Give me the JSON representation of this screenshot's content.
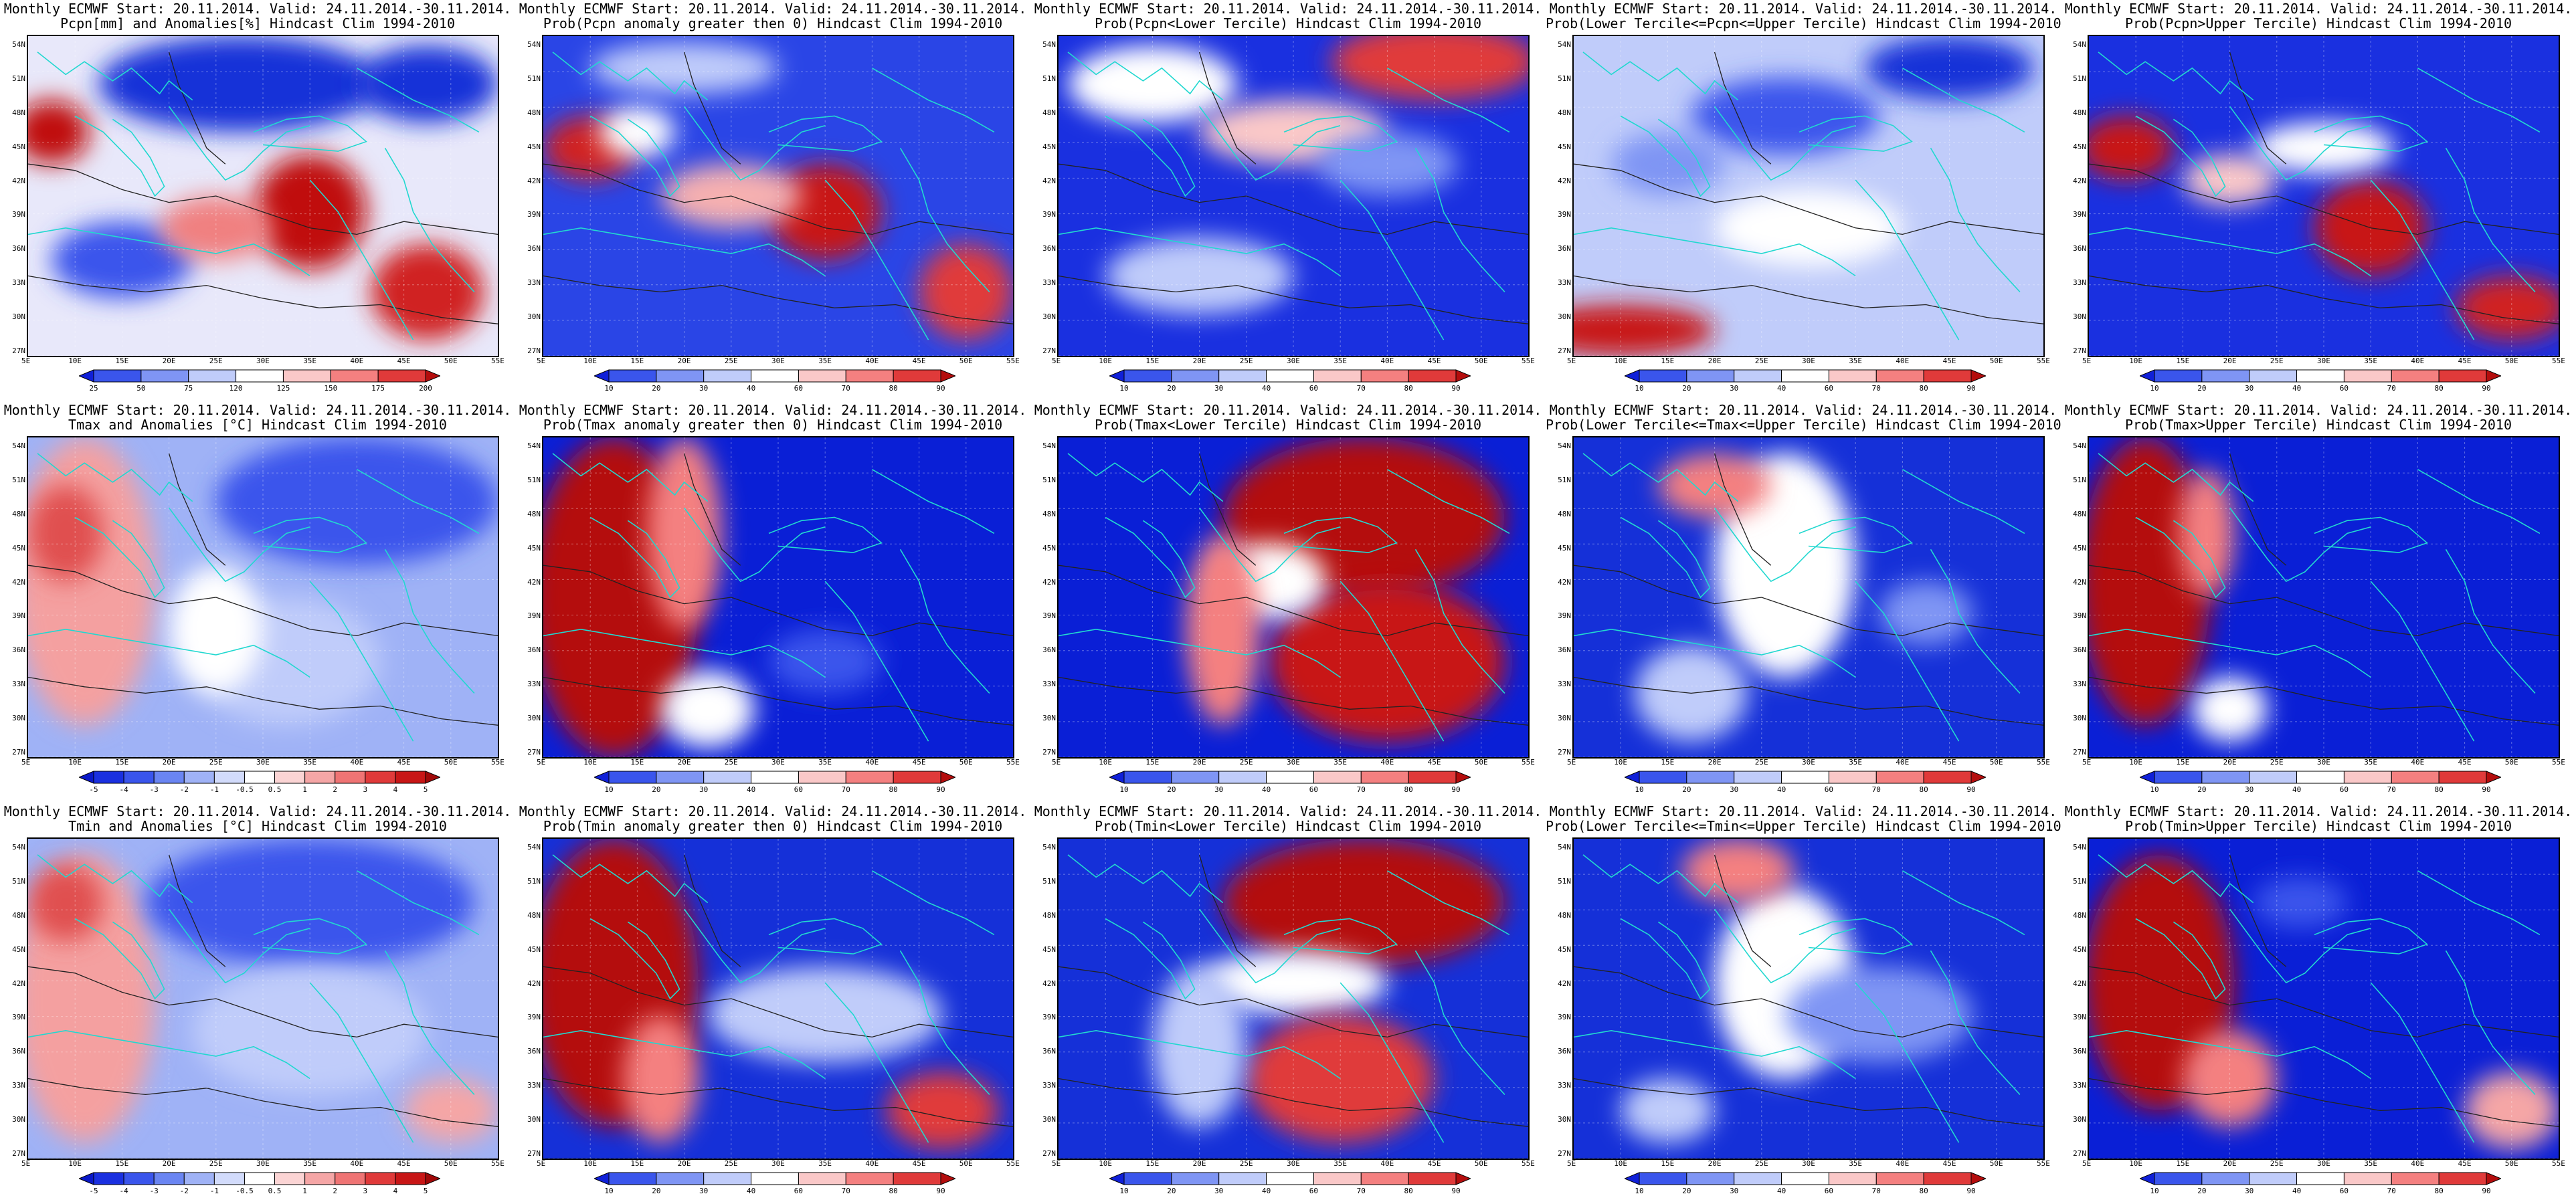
{
  "grid": {
    "lat_labels": [
      "54N",
      "51N",
      "48N",
      "45N",
      "42N",
      "39N",
      "36N",
      "33N",
      "30N",
      "27N"
    ],
    "lon_labels": [
      "5E",
      "10E",
      "15E",
      "20E",
      "25E",
      "30E",
      "35E",
      "40E",
      "45E",
      "50E",
      "55E"
    ]
  },
  "colorbars": {
    "pcpn_anom": {
      "labels": [
        "25",
        "50",
        "75",
        "120",
        "125",
        "150",
        "175",
        "200"
      ],
      "colors": [
        "#1020d8",
        "#3a55ec",
        "#7f95f4",
        "#c0ccfa",
        "#ffffff",
        "#fac8c8",
        "#f48080",
        "#e03a3a",
        "#b40d0d"
      ]
    },
    "prob": {
      "labels": [
        "10",
        "20",
        "30",
        "40",
        "60",
        "70",
        "80",
        "90"
      ],
      "colors": [
        "#1020d8",
        "#3a55ec",
        "#7f95f4",
        "#c0ccfa",
        "#ffffff",
        "#fac8c8",
        "#f48080",
        "#e03a3a",
        "#b40d0d"
      ]
    },
    "temp_anom": {
      "labels": [
        "-5",
        "-4",
        "-3",
        "-2",
        "-1",
        "-0.5",
        "0.5",
        "1",
        "2",
        "3",
        "4",
        "5"
      ],
      "colors": [
        "#0a18c8",
        "#1a30e0",
        "#3a55ec",
        "#6a85f2",
        "#9fb2f6",
        "#d2dbfb",
        "#ffffff",
        "#fbd4d4",
        "#f5a6a6",
        "#ef7474",
        "#e03a3a",
        "#c81616",
        "#a00808"
      ]
    }
  },
  "panels": [
    {
      "title1": "Monthly ECMWF Start: 20.11.2014. Valid: 24.11.2014.-30.11.2014.",
      "title2": "Pcpn[mm] and Anomalies[%] Hindcast Clim 1994-2010",
      "colorbar": "pcpn_anom",
      "bg": "#e8e8fa",
      "blobs": [
        [
          0.05,
          0.3,
          0.08,
          0.1,
          "#c01010"
        ],
        [
          0.6,
          0.55,
          0.12,
          0.18,
          "#c01010"
        ],
        [
          0.85,
          0.8,
          0.12,
          0.15,
          "#d02020"
        ],
        [
          0.45,
          0.15,
          0.3,
          0.15,
          "#1530d8"
        ],
        [
          0.85,
          0.15,
          0.15,
          0.12,
          "#1530d8"
        ],
        [
          0.2,
          0.7,
          0.15,
          0.12,
          "#3a55ec"
        ],
        [
          0.4,
          0.6,
          0.12,
          0.1,
          "#f08080"
        ]
      ]
    },
    {
      "title1": "Monthly ECMWF Start: 20.11.2014. Valid: 24.11.2014.-30.11.2014.",
      "title2": "Prob(Pcpn anomaly greater then 0) Hindcast Clim 1994-2010",
      "colorbar": "prob",
      "bg": "#2a45e6",
      "blobs": [
        [
          0.1,
          0.35,
          0.1,
          0.1,
          "#d02020"
        ],
        [
          0.6,
          0.55,
          0.12,
          0.15,
          "#c81818"
        ],
        [
          0.9,
          0.8,
          0.1,
          0.15,
          "#e03a3a"
        ],
        [
          0.2,
          0.3,
          0.08,
          0.08,
          "#ffffff"
        ],
        [
          0.4,
          0.5,
          0.15,
          0.1,
          "#f6b0b0"
        ],
        [
          0.3,
          0.1,
          0.2,
          0.08,
          "#c0ccfa"
        ]
      ]
    },
    {
      "title1": "Monthly ECMWF Start: 20.11.2014. Valid: 24.11.2014.-30.11.2014.",
      "title2": "Prob(Pcpn<Lower Tercile) Hindcast Clim 1994-2010",
      "colorbar": "prob",
      "bg": "#1a30e0",
      "blobs": [
        [
          0.8,
          0.08,
          0.22,
          0.12,
          "#e03a3a"
        ],
        [
          0.2,
          0.15,
          0.18,
          0.12,
          "#ffffff"
        ],
        [
          0.5,
          0.3,
          0.2,
          0.1,
          "#fac8c8"
        ],
        [
          0.3,
          0.75,
          0.2,
          0.12,
          "#c0ccfa"
        ],
        [
          0.7,
          0.4,
          0.15,
          0.1,
          "#7f95f4"
        ]
      ]
    },
    {
      "title1": "Monthly ECMWF Start: 20.11.2014. Valid: 24.11.2014.-30.11.2014.",
      "title2": "Prob(Lower Tercile<=Pcpn<=Upper Tercile) Hindcast Clim 1994-2010",
      "colorbar": "prob",
      "bg": "#c0ccfa",
      "blobs": [
        [
          0.1,
          0.92,
          0.2,
          0.08,
          "#c81818"
        ],
        [
          0.45,
          0.25,
          0.2,
          0.12,
          "#3a55ec"
        ],
        [
          0.8,
          0.1,
          0.18,
          0.1,
          "#1530d8"
        ],
        [
          0.5,
          0.6,
          0.2,
          0.12,
          "#ffffff"
        ],
        [
          0.2,
          0.4,
          0.12,
          0.1,
          "#7f95f4"
        ]
      ]
    },
    {
      "title1": "Monthly ECMWF Start: 20.11.2014. Valid: 24.11.2014.-30.11.2014.",
      "title2": "Prob(Pcpn>Upper Tercile) Hindcast Clim 1994-2010",
      "colorbar": "prob",
      "bg": "#1a30e0",
      "blobs": [
        [
          0.08,
          0.35,
          0.1,
          0.1,
          "#c81818"
        ],
        [
          0.6,
          0.6,
          0.12,
          0.15,
          "#c81818"
        ],
        [
          0.9,
          0.85,
          0.12,
          0.1,
          "#d02020"
        ],
        [
          0.3,
          0.45,
          0.1,
          0.08,
          "#fac8c8"
        ],
        [
          0.5,
          0.35,
          0.15,
          0.08,
          "#ffffff"
        ]
      ]
    },
    {
      "title1": "Monthly ECMWF Start: 20.11.2014. Valid: 24.11.2014.-30.11.2014.",
      "title2": "Tmax and Anomalies [°C] Hindcast Clim 1994-2010",
      "colorbar": "temp_anom",
      "bg": "#9fb2f6",
      "blobs": [
        [
          0.12,
          0.45,
          0.15,
          0.45,
          "#f4a0a0"
        ],
        [
          0.08,
          0.3,
          0.08,
          0.15,
          "#e05050"
        ],
        [
          0.7,
          0.2,
          0.3,
          0.2,
          "#3a55ec"
        ],
        [
          0.55,
          0.7,
          0.2,
          0.2,
          "#c0ccfa"
        ],
        [
          0.4,
          0.6,
          0.1,
          0.2,
          "#ffffff"
        ]
      ]
    },
    {
      "title1": "Monthly ECMWF Start: 20.11.2014. Valid: 24.11.2014.-30.11.2014.",
      "title2": "Prob(Tmax anomaly greater then 0) Hindcast Clim 1994-2010",
      "colorbar": "prob",
      "bg": "#0a1fd6",
      "blobs": [
        [
          0.15,
          0.5,
          0.18,
          0.5,
          "#b40d0d"
        ],
        [
          0.3,
          0.3,
          0.08,
          0.3,
          "#f48080"
        ],
        [
          0.35,
          0.85,
          0.1,
          0.12,
          "#ffffff"
        ],
        [
          0.6,
          0.7,
          0.12,
          0.1,
          "#3a55ec"
        ]
      ]
    },
    {
      "title1": "Monthly ECMWF Start: 20.11.2014. Valid: 24.11.2014.-30.11.2014.",
      "title2": "Prob(Tmax<Lower Tercile) Hindcast Clim 1994-2010",
      "colorbar": "prob",
      "bg": "#0a1fd6",
      "blobs": [
        [
          0.65,
          0.25,
          0.3,
          0.25,
          "#b40d0d"
        ],
        [
          0.7,
          0.7,
          0.25,
          0.25,
          "#c81616"
        ],
        [
          0.45,
          0.45,
          0.12,
          0.12,
          "#ffffff"
        ],
        [
          0.35,
          0.6,
          0.08,
          0.3,
          "#f48080"
        ]
      ]
    },
    {
      "title1": "Monthly ECMWF Start: 20.11.2014. Valid: 24.11.2014.-30.11.2014.",
      "title2": "Prob(Lower Tercile<=Tmax<=Upper Tercile) Hindcast Clim 1994-2010",
      "colorbar": "prob",
      "bg": "#1530d8",
      "blobs": [
        [
          0.45,
          0.4,
          0.15,
          0.35,
          "#ffffff"
        ],
        [
          0.3,
          0.15,
          0.12,
          0.1,
          "#f48080"
        ],
        [
          0.25,
          0.8,
          0.12,
          0.15,
          "#c0ccfa"
        ],
        [
          0.75,
          0.55,
          0.1,
          0.1,
          "#7f95f4"
        ]
      ]
    },
    {
      "title1": "Monthly ECMWF Start: 20.11.2014. Valid: 24.11.2014.-30.11.2014.",
      "title2": "Prob(Tmax>Upper Tercile) Hindcast Clim 1994-2010",
      "colorbar": "prob",
      "bg": "#0a1fd6",
      "blobs": [
        [
          0.12,
          0.45,
          0.14,
          0.45,
          "#b40d0d"
        ],
        [
          0.25,
          0.3,
          0.06,
          0.2,
          "#f48080"
        ],
        [
          0.3,
          0.85,
          0.08,
          0.1,
          "#ffffff"
        ]
      ]
    },
    {
      "title1": "Monthly ECMWF Start: 20.11.2014. Valid: 24.11.2014.-30.11.2014.",
      "title2": "Tmin and Anomalies [°C] Hindcast Clim 1994-2010",
      "colorbar": "temp_anom",
      "bg": "#9fb2f6",
      "blobs": [
        [
          0.12,
          0.5,
          0.15,
          0.45,
          "#f4a0a0"
        ],
        [
          0.08,
          0.2,
          0.08,
          0.12,
          "#e05050"
        ],
        [
          0.6,
          0.2,
          0.35,
          0.2,
          "#3a55ec"
        ],
        [
          0.6,
          0.6,
          0.25,
          0.2,
          "#c0ccfa"
        ],
        [
          0.9,
          0.85,
          0.1,
          0.1,
          "#f5a6a6"
        ]
      ]
    },
    {
      "title1": "Monthly ECMWF Start: 20.11.2014. Valid: 24.11.2014.-30.11.2014.",
      "title2": "Prob(Tmin anomaly greater then 0) Hindcast Clim 1994-2010",
      "colorbar": "prob",
      "bg": "#1530d8",
      "blobs": [
        [
          0.15,
          0.45,
          0.18,
          0.45,
          "#b40d0d"
        ],
        [
          0.25,
          0.75,
          0.08,
          0.2,
          "#f48080"
        ],
        [
          0.6,
          0.55,
          0.25,
          0.15,
          "#c0ccfa"
        ],
        [
          0.85,
          0.85,
          0.12,
          0.12,
          "#e03a3a"
        ]
      ]
    },
    {
      "title1": "Monthly ECMWF Start: 20.11.2014. Valid: 24.11.2014.-30.11.2014.",
      "title2": "Prob(Tmin<Lower Tercile) Hindcast Clim 1994-2010",
      "colorbar": "prob",
      "bg": "#1530d8",
      "blobs": [
        [
          0.65,
          0.2,
          0.3,
          0.2,
          "#b40d0d"
        ],
        [
          0.5,
          0.45,
          0.2,
          0.1,
          "#ffffff"
        ],
        [
          0.6,
          0.75,
          0.2,
          0.2,
          "#e03a3a"
        ],
        [
          0.3,
          0.65,
          0.1,
          0.25,
          "#c0ccfa"
        ]
      ]
    },
    {
      "title1": "Monthly ECMWF Start: 20.11.2014. Valid: 24.11.2014.-30.11.2014.",
      "title2": "Prob(Lower Tercile<=Tmin<=Upper Tercile) Hindcast Clim 1994-2010",
      "colorbar": "prob",
      "bg": "#1530d8",
      "blobs": [
        [
          0.45,
          0.45,
          0.15,
          0.3,
          "#ffffff"
        ],
        [
          0.35,
          0.1,
          0.12,
          0.1,
          "#f48080"
        ],
        [
          0.65,
          0.55,
          0.2,
          0.15,
          "#7f95f4"
        ],
        [
          0.2,
          0.85,
          0.1,
          0.1,
          "#c0ccfa"
        ]
      ]
    },
    {
      "title1": "Monthly ECMWF Start: 20.11.2014. Valid: 24.11.2014.-30.11.2014.",
      "title2": "Prob(Tmin>Upper Tercile) Hindcast Clim 1994-2010",
      "colorbar": "prob",
      "bg": "#0a1fd6",
      "blobs": [
        [
          0.15,
          0.45,
          0.16,
          0.4,
          "#b40d0d"
        ],
        [
          0.3,
          0.75,
          0.1,
          0.15,
          "#f48080"
        ],
        [
          0.9,
          0.85,
          0.1,
          0.12,
          "#f5a6a6"
        ],
        [
          0.45,
          0.2,
          0.1,
          0.08,
          "#3a55ec"
        ]
      ]
    }
  ]
}
